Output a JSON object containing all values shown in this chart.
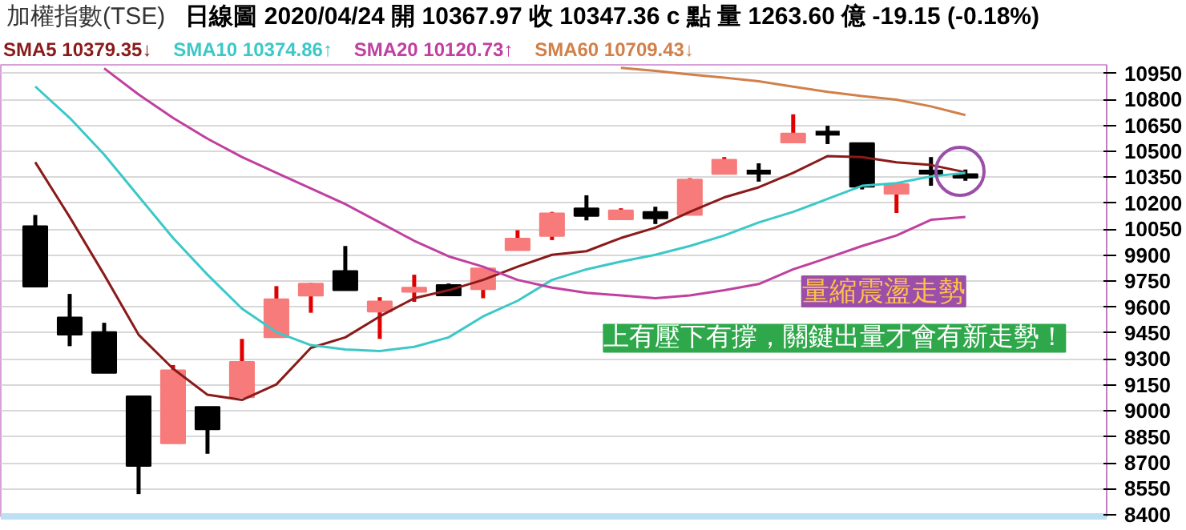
{
  "chart_data": {
    "type": "candlestick",
    "title": "加權指數(TSE)",
    "subtitle": "日線圖 2020/04/24 開 10367.97 收 10347.36 c 點 量 1263.60 億 -19.15 (-0.18%)",
    "categories": [
      null,
      null,
      null,
      null,
      null,
      null,
      null,
      null,
      null,
      null,
      null,
      null,
      null,
      null,
      null,
      null,
      null,
      null,
      null,
      null,
      null,
      null,
      null,
      null,
      null,
      null,
      null,
      null
    ],
    "ohlc": [
      [
        10068,
        10132,
        9718,
        9718
      ],
      [
        9540,
        9676,
        9374,
        9440
      ],
      [
        9455,
        9509,
        9220,
        9220
      ],
      [
        9084,
        9084,
        8519,
        8682
      ],
      [
        8812,
        9265,
        8812,
        9235
      ],
      [
        9023,
        9023,
        8752,
        8893
      ],
      [
        9078,
        9416,
        9078,
        9283
      ],
      [
        9425,
        9721,
        9425,
        9645
      ],
      [
        9666,
        9740,
        9567,
        9736
      ],
      [
        9808,
        9953,
        9697,
        9697
      ],
      [
        9573,
        9657,
        9416,
        9633
      ],
      [
        9688,
        9787,
        9630,
        9712
      ],
      [
        9727,
        9736,
        9667,
        9667
      ],
      [
        9703,
        9823,
        9651,
        9823
      ],
      [
        9929,
        10044,
        9929,
        9996
      ],
      [
        10011,
        10150,
        9987,
        10141
      ],
      [
        10171,
        10246,
        10101,
        10126
      ],
      [
        10107,
        10171,
        10107,
        10159
      ],
      [
        10150,
        10180,
        10080,
        10113
      ],
      [
        10132,
        10345,
        10132,
        10337
      ],
      [
        10370,
        10467,
        10370,
        10452
      ],
      [
        10385,
        10431,
        10325,
        10375
      ],
      [
        10551,
        10714,
        10551,
        10603
      ],
      [
        10610,
        10648,
        10542,
        10600
      ],
      [
        10548,
        10548,
        10280,
        10295
      ],
      [
        10255,
        10310,
        10144,
        10310
      ],
      [
        10385,
        10467,
        10301,
        10375
      ],
      [
        10367.97,
        10395,
        10330,
        10347.36
      ]
    ],
    "colors": [
      "#000000",
      "#000000",
      "#000000",
      "#000000",
      "#f77b7b",
      "#000000",
      "#f77b7b",
      "#f77b7b",
      "#f77b7b",
      "#000000",
      "#f77b7b",
      "#f77b7b",
      "#000000",
      "#f77b7b",
      "#f77b7b",
      "#f77b7b",
      "#000000",
      "#f77b7b",
      "#000000",
      "#f77b7b",
      "#f77b7b",
      "#000000",
      "#f77b7b",
      "#000000",
      "#000000",
      "#f77b7b",
      "#000000",
      "#000000"
    ],
    "series": [
      {
        "name": "SMA5 10379.35↓",
        "type": "line",
        "color": "#8b1a1a",
        "values": [
          10437,
          10120,
          9787,
          9440,
          9244,
          9093,
          9063,
          9153,
          9364,
          9425,
          9546,
          9651,
          9697,
          9757,
          9833,
          9902,
          9923,
          9999,
          10059,
          10150,
          10234,
          10292,
          10376,
          10473,
          10467,
          10437,
          10421,
          10379.35
        ]
      },
      {
        "name": "SMA10 10374.86↑",
        "type": "line",
        "color": "#3cc8c8",
        "values": [
          10875,
          10693,
          10482,
          10240,
          9999,
          9787,
          9591,
          9455,
          9380,
          9355,
          9346,
          9370,
          9425,
          9546,
          9636,
          9757,
          9818,
          9863,
          9902,
          9953,
          10014,
          10089,
          10150,
          10225,
          10301,
          10316,
          10355,
          10374.86
        ]
      },
      {
        "name": "SMA20 10120.73↑",
        "type": "line",
        "color": "#c040a0",
        "values": [
          null,
          null,
          10980,
          10829,
          10693,
          10573,
          10467,
          10376,
          10286,
          10195,
          10089,
          9983,
          9893,
          9833,
          9757,
          9712,
          9682,
          9667,
          9651,
          9667,
          9697,
          9733,
          9818,
          9884,
          9953,
          10014,
          10104,
          10120.73
        ]
      },
      {
        "name": "SMA60 10709.43↓",
        "type": "line",
        "color": "#d2804a",
        "values": [
          null,
          null,
          null,
          null,
          null,
          null,
          null,
          null,
          null,
          null,
          null,
          null,
          null,
          null,
          null,
          null,
          null,
          10983,
          10965,
          10944,
          10926,
          10905,
          10874,
          10844,
          10820,
          10799,
          10760,
          10709.43
        ]
      }
    ],
    "ylim": [
      8390,
      11000
    ],
    "yticks": [
      8400,
      8550,
      8700,
      8850,
      9000,
      9150,
      9300,
      9450,
      9600,
      9750,
      9900,
      10050,
      10200,
      10350,
      10500,
      10650,
      10800,
      10950
    ],
    "tick_labels": "y",
    "grid": "y",
    "legend": "top",
    "annotations": [
      "量縮震盪走勢",
      "上有壓下有撐，關鍵出量才會有新走勢！"
    ]
  }
}
